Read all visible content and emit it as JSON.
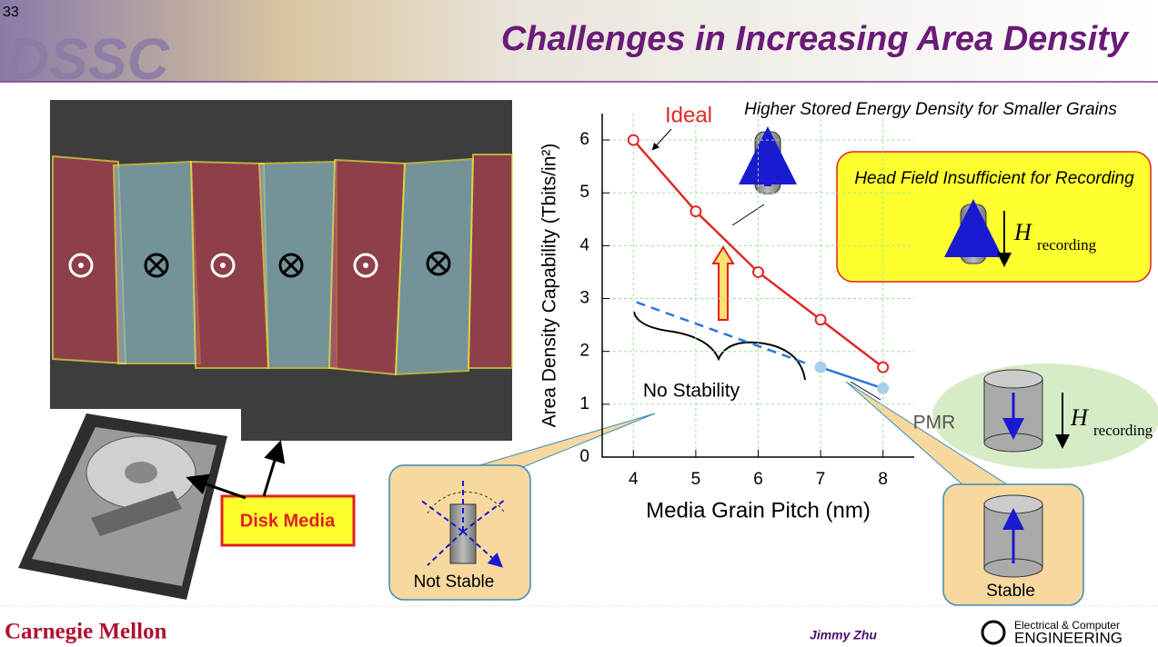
{
  "slide_number": "33",
  "logo": "DSSC",
  "title": "Challenges in Increasing Area Density",
  "chart_data": {
    "type": "line",
    "x_label": "Media Grain Pitch (nm)",
    "y_label": "Area Density Capability (Tbits/in²)",
    "xlim": [
      3.5,
      8.5
    ],
    "xticks": [
      4,
      5,
      6,
      7,
      8
    ],
    "ylim": [
      0,
      6.5
    ],
    "yticks": [
      0,
      1,
      2,
      3,
      4,
      5,
      6
    ],
    "grid": true,
    "series": [
      {
        "name": "Ideal",
        "color": "#e02828",
        "marker": "open",
        "x": [
          4,
          5,
          6,
          7,
          8
        ],
        "values": [
          6,
          4.65,
          3.5,
          2.6,
          1.7
        ]
      },
      {
        "color": "#2e75d6",
        "dash": true,
        "x": [
          4.05,
          6.85
        ],
        "values": [
          2.93,
          1.74
        ]
      },
      {
        "name": "PMR",
        "color": "#2e75d6",
        "marker": "filled",
        "marker_color": "#a9d0ea",
        "x": [
          7,
          8
        ],
        "values": [
          1.7,
          1.3
        ]
      }
    ]
  },
  "annotations": {
    "energy": "Higher Stored Energy Density for Smaller Grains",
    "head_field": "Head Field Insufficient for Recording",
    "no_stability": "No Stability",
    "not_stable": "Not Stable",
    "stable": "Stable",
    "disk_media": "Disk Media",
    "field_symbol": "H",
    "field_subscript": "recording"
  },
  "footer": {
    "university": "Carnegie Mellon",
    "author": "Jimmy Zhu",
    "dept_line1": "Electrical & Computer",
    "dept_line2": "ENGINEERING"
  }
}
